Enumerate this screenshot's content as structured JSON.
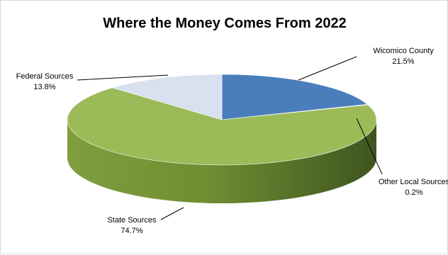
{
  "chart_data": {
    "type": "pie",
    "title": "Where the Money Comes From 2022",
    "three_d": true,
    "slices": [
      {
        "label": "Wicomico County",
        "value": 21.5,
        "value_label": "21.5%",
        "color": "#4a7ebb",
        "side_color": "#2f5a8a"
      },
      {
        "label": "Other Local Sources",
        "value": 0.2,
        "value_label": "0.2%",
        "color": "#c0504d",
        "side_color": "#8c3331"
      },
      {
        "label": "State Sources",
        "value": 74.7,
        "value_label": "74.7%",
        "color": "#9bbb59",
        "side_color": "#6a8a30"
      },
      {
        "label": "Federal Sources",
        "value": 13.8,
        "value_label": "13.8%",
        "color": "#d9e1f0",
        "side_color": "#aeb8cc"
      }
    ],
    "legend": "none"
  }
}
